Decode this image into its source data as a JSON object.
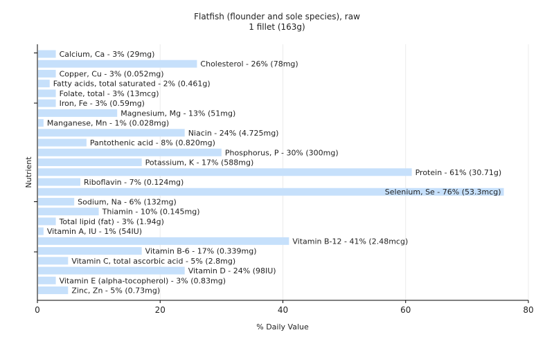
{
  "chart_data": {
    "type": "bar",
    "orientation": "horizontal",
    "title": "Flatfish (flounder and sole species), raw",
    "subtitle": "1 fillet (163g)",
    "xlabel": "% Daily Value",
    "ylabel": "Nutrient",
    "xlim": [
      0,
      80
    ],
    "xticks": [
      0,
      20,
      40,
      60,
      80
    ],
    "grid": true,
    "bar_color": "#c6e0fb",
    "categories": [
      "Calcium, Ca",
      "Cholesterol",
      "Copper, Cu",
      "Fatty acids, total saturated",
      "Folate, total",
      "Iron, Fe",
      "Magnesium, Mg",
      "Manganese, Mn",
      "Niacin",
      "Pantothenic acid",
      "Phosphorus, P",
      "Potassium, K",
      "Protein",
      "Riboflavin",
      "Selenium, Se",
      "Sodium, Na",
      "Thiamin",
      "Total lipid (fat)",
      "Vitamin A, IU",
      "Vitamin B-12",
      "Vitamin B-6",
      "Vitamin C, total ascorbic acid",
      "Vitamin D",
      "Vitamin E (alpha-tocopherol)",
      "Zinc, Zn"
    ],
    "values": [
      3,
      26,
      3,
      2,
      3,
      3,
      13,
      1,
      24,
      8,
      30,
      17,
      61,
      7,
      76,
      6,
      10,
      3,
      1,
      41,
      17,
      5,
      24,
      3,
      5
    ],
    "labels": [
      "Calcium, Ca - 3% (29mg)",
      "Cholesterol - 26% (78mg)",
      "Copper, Cu - 3% (0.052mg)",
      "Fatty acids, total saturated - 2% (0.461g)",
      "Folate, total - 3% (13mcg)",
      "Iron, Fe - 3% (0.59mg)",
      "Magnesium, Mg - 13% (51mg)",
      "Manganese, Mn - 1% (0.028mg)",
      "Niacin - 24% (4.725mg)",
      "Pantothenic acid - 8% (0.820mg)",
      "Phosphorus, P - 30% (300mg)",
      "Potassium, K - 17% (588mg)",
      "Protein - 61% (30.71g)",
      "Riboflavin - 7% (0.124mg)",
      "Selenium, Se - 76% (53.3mcg)",
      "Sodium, Na - 6% (132mg)",
      "Thiamin - 10% (0.145mg)",
      "Total lipid (fat) - 3% (1.94g)",
      "Vitamin A, IU - 1% (54IU)",
      "Vitamin B-12 - 41% (2.48mcg)",
      "Vitamin B-6 - 17% (0.339mg)",
      "Vitamin C, total ascorbic acid - 5% (2.8mg)",
      "Vitamin D - 24% (98IU)",
      "Vitamin E (alpha-tocopherol) - 3% (0.83mg)",
      "Zinc, Zn - 5% (0.73mg)"
    ]
  }
}
